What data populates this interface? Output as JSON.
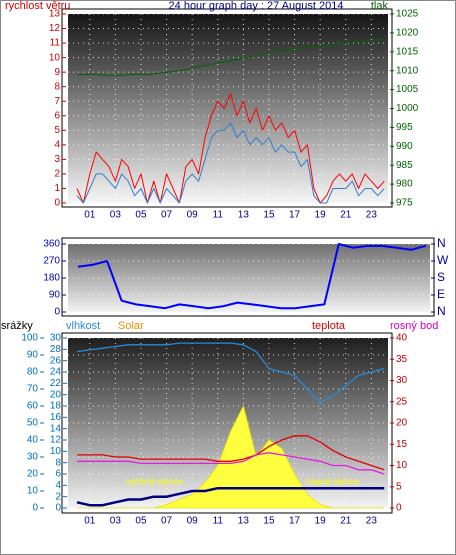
{
  "chart_data": [
    {
      "type": "line",
      "title": "24 hour graph day : 27 August 2014",
      "x": [
        0,
        0.5,
        1,
        1.5,
        2,
        2.5,
        3,
        3.5,
        4,
        4.5,
        5,
        5.5,
        6,
        6.5,
        7,
        7.5,
        8,
        8.5,
        9,
        9.5,
        10,
        10.5,
        11,
        11.5,
        12,
        12.5,
        13,
        13.5,
        14,
        14.5,
        15,
        15.5,
        16,
        16.5,
        17,
        17.5,
        18,
        18.5,
        19,
        19.5,
        20,
        20.5,
        21,
        21.5,
        22,
        22.5,
        23,
        23.5,
        24
      ],
      "xlim": [
        -0.7,
        24.3
      ],
      "xticks": [
        {
          "value": 1,
          "label": "01"
        },
        {
          "value": 3,
          "label": "03"
        },
        {
          "value": 5,
          "label": "05"
        },
        {
          "value": 7,
          "label": "07"
        },
        {
          "value": 9,
          "label": "09"
        },
        11,
        13,
        15,
        17,
        19,
        21,
        23
      ],
      "ylim": [
        0,
        13
      ],
      "yticks": [
        0,
        1,
        2,
        3,
        4,
        5,
        6,
        7,
        8,
        9,
        10,
        11,
        12,
        13
      ],
      "y2lim": [
        975,
        1025
      ],
      "y2ticks": [
        975,
        980,
        985,
        990,
        995,
        1000,
        1005,
        1010,
        1015,
        1020,
        1025
      ],
      "grid": true,
      "series": [
        {
          "name": "rychlost větru",
          "color": "#ff0000",
          "axis": "y",
          "values": [
            1,
            0,
            2,
            3.5,
            3,
            2.5,
            1.5,
            3,
            2.5,
            1,
            2,
            0,
            1.5,
            0,
            2,
            1,
            0,
            2.5,
            3,
            2,
            4.5,
            6,
            7,
            6.5,
            7.5,
            6,
            7,
            5.5,
            6.5,
            5,
            6,
            5,
            5.5,
            4.5,
            5,
            3.5,
            4,
            1,
            0,
            0.5,
            1.5,
            2,
            1.5,
            2,
            1,
            2,
            1.5,
            1,
            1.5
          ]
        },
        {
          "color": "#2f7fd0",
          "axis": "y",
          "values": [
            0.5,
            0,
            1,
            2,
            2,
            1.5,
            1,
            2,
            1.5,
            0.5,
            1,
            0,
            1,
            0,
            1,
            0.5,
            0,
            1.5,
            2,
            1.5,
            3,
            4.5,
            5,
            5,
            5.5,
            4.5,
            5,
            4,
            4.5,
            4,
            4.5,
            3.5,
            4,
            3.5,
            3.5,
            2.5,
            3,
            0.5,
            0,
            0,
            1,
            1,
            1,
            1.5,
            0.5,
            1,
            1,
            0.5,
            1
          ]
        },
        {
          "name": "tlak",
          "color": "#006400",
          "axis": "y2",
          "values": [
            1009,
            1009,
            1009,
            1009,
            1008.8,
            1008.8,
            1008.8,
            1008.8,
            1009,
            1009,
            1009,
            1009,
            1009.2,
            1009.4,
            1009.6,
            1009.8,
            1010,
            1010.3,
            1010.6,
            1011,
            1011.3,
            1011.6,
            1012,
            1012.3,
            1012.6,
            1013,
            1013.3,
            1013.6,
            1014,
            1014.3,
            1014.6,
            1015,
            1015.2,
            1015.5,
            1015.8,
            1016,
            1016.2,
            1016.4,
            1016.6,
            1016.8,
            1017,
            1017.2,
            1017.4,
            1017.6,
            1017.8,
            1018,
            1018,
            1018.2,
            1018.2
          ]
        }
      ]
    },
    {
      "type": "line",
      "x": [
        0,
        1,
        2,
        3,
        4,
        5,
        6,
        7,
        8,
        9,
        10,
        11,
        12,
        13,
        14,
        15,
        16,
        17,
        18,
        19,
        20,
        21,
        22,
        23,
        24
      ],
      "xlim": [
        -0.7,
        24.3
      ],
      "ylim": [
        0,
        360
      ],
      "yticks": [
        0,
        90,
        180,
        270,
        360
      ],
      "y2lim": [
        0,
        360
      ],
      "y2ticks": [
        {
          "value": 360,
          "label": "N"
        },
        {
          "value": 270,
          "label": "W"
        },
        {
          "value": 180,
          "label": "S"
        },
        {
          "value": 90,
          "label": "E"
        },
        {
          "value": 0,
          "label": "N"
        }
      ],
      "grid": true,
      "series": [
        {
          "color": "#0000ff",
          "axis": "y",
          "values": [
            240,
            250,
            270,
            60,
            40,
            30,
            20,
            40,
            30,
            20,
            30,
            50,
            40,
            30,
            20,
            20,
            30,
            40,
            360,
            340,
            350,
            350,
            340,
            330,
            350
          ]
        }
      ]
    },
    {
      "type": "line",
      "x": [
        0,
        1,
        2,
        3,
        4,
        5,
        6,
        7,
        8,
        9,
        10,
        11,
        12,
        13,
        14,
        15,
        16,
        17,
        18,
        19,
        20,
        21,
        22,
        23,
        24
      ],
      "xlim": [
        -0.7,
        24.3
      ],
      "xticks": [
        {
          "value": 1,
          "label": "01"
        },
        {
          "value": 3,
          "label": "03"
        },
        {
          "value": 5,
          "label": "05"
        },
        {
          "value": 7,
          "label": "07"
        },
        {
          "value": 9,
          "label": "09"
        },
        11,
        13,
        15,
        17,
        19,
        21,
        23
      ],
      "ylim": [
        0,
        100
      ],
      "yticks": [
        0,
        10,
        20,
        30,
        40,
        50,
        60,
        70,
        80,
        90,
        100
      ],
      "y3lim": [
        0,
        30
      ],
      "y3ticks": [
        0,
        2,
        4,
        6,
        8,
        10,
        12,
        14,
        16,
        18,
        20,
        22,
        24,
        26,
        28,
        30
      ],
      "y2lim": [
        0,
        40
      ],
      "y2ticks": [
        0,
        5,
        10,
        15,
        20,
        25,
        30,
        35,
        40
      ],
      "grid": true,
      "annotations": [
        "východ slunce",
        "západ slunce"
      ],
      "series": [
        {
          "name": "Solar",
          "color": "#ffff40",
          "axis": "y",
          "style": "area",
          "values": [
            0,
            0,
            0,
            0,
            0,
            0,
            0,
            2,
            5,
            8,
            15,
            25,
            45,
            60,
            30,
            40,
            35,
            20,
            8,
            2,
            0,
            0,
            0,
            0,
            0
          ]
        },
        {
          "name": "srážky",
          "color": "#000080",
          "axis": "y3",
          "values": [
            1,
            0.5,
            0.5,
            1,
            1.5,
            1.5,
            2,
            2,
            2.5,
            3,
            3,
            3.5,
            3.5,
            3.5,
            3.5,
            3.5,
            3.5,
            3.5,
            3.5,
            3.5,
            3.5,
            3.5,
            3.5,
            3.5,
            3.5
          ]
        },
        {
          "name": "vlhkost",
          "color": "#2a8ad8",
          "axis": "y",
          "values": [
            92,
            93,
            94,
            95,
            96,
            96,
            96,
            96,
            97,
            97,
            97,
            97,
            97,
            96,
            92,
            82,
            80,
            78,
            70,
            62,
            66,
            72,
            78,
            80,
            82
          ]
        },
        {
          "name": "teplota",
          "color": "#e00000",
          "axis": "y2",
          "values": [
            12.5,
            12.5,
            12.5,
            12,
            12,
            11.5,
            11.5,
            11.5,
            11.5,
            11.5,
            11.5,
            11,
            11,
            11.5,
            12.5,
            14.5,
            16,
            17,
            17,
            15.5,
            13.5,
            12,
            11,
            10,
            9
          ]
        },
        {
          "name": "rosný bod",
          "color": "#e020e0",
          "axis": "y2",
          "values": [
            11,
            11,
            11,
            11,
            11,
            10.5,
            10.5,
            10.5,
            10.5,
            10.5,
            10.5,
            10.5,
            10.5,
            11,
            12.5,
            13,
            12.5,
            12,
            11.5,
            11,
            10,
            10,
            9,
            9,
            8
          ]
        }
      ]
    }
  ]
}
